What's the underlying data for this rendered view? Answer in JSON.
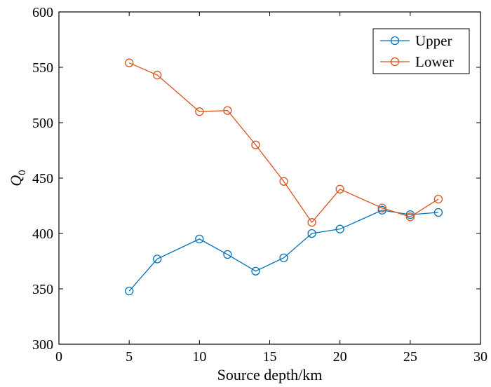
{
  "chart_data": {
    "type": "line",
    "title": "",
    "xlabel": "Source depth/km",
    "ylabel": "Q",
    "ylabel_subscript": "0",
    "xlim": [
      0,
      30
    ],
    "ylim": [
      300,
      600
    ],
    "xticks": [
      0,
      5,
      10,
      15,
      20,
      25,
      30
    ],
    "yticks": [
      300,
      350,
      400,
      450,
      500,
      550,
      600
    ],
    "x": [
      5,
      7,
      10,
      12,
      14,
      16,
      18,
      20,
      23,
      25,
      27
    ],
    "series": [
      {
        "name": "Upper",
        "color": "#0072BD",
        "values": [
          348,
          377,
          395,
          381,
          366,
          378,
          400,
          404,
          421,
          417,
          419
        ]
      },
      {
        "name": "Lower",
        "color": "#D95319",
        "values": [
          554,
          543,
          510,
          511,
          480,
          447,
          410,
          440,
          423,
          415,
          431
        ]
      }
    ],
    "legend_position": "top-right",
    "grid": false
  }
}
